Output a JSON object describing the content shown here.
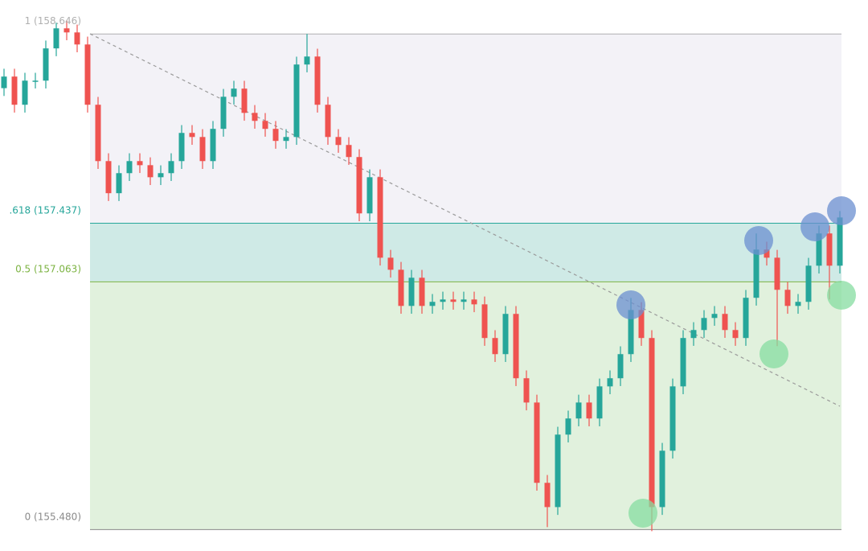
{
  "chart_data": {
    "type": "candlestick",
    "ylim": [
      155.4,
      158.75
    ],
    "up_color": "#26a69a",
    "down_color": "#ef5350",
    "fib_levels": [
      {
        "label": "1 (158.646)",
        "value": 158.646,
        "color": "#b0b0b0",
        "fill": "#f3f2f7"
      },
      {
        "label": ".618 (157.437)",
        "value": 157.437,
        "color": "#26a69a",
        "fill": "#cfeae6"
      },
      {
        "label": "0.5 (157.063)",
        "value": 157.063,
        "color": "#7cb342",
        "fill": "#e1f1dd"
      },
      {
        "label": "0 (155.480)",
        "value": 155.48,
        "color": "#8a8a8a",
        "fill": null
      }
    ],
    "open": [
      158.3,
      158.374,
      158.194,
      158.348,
      158.348,
      158.554,
      158.682,
      158.656,
      158.579,
      158.194,
      157.834,
      157.629,
      157.757,
      157.834,
      157.808,
      157.731,
      157.757,
      157.834,
      158.014,
      157.988,
      157.834,
      158.04,
      158.245,
      158.297,
      158.142,
      158.091,
      158.04,
      157.963,
      157.988,
      158.451,
      158.502,
      158.194,
      157.988,
      157.937,
      157.86,
      157.5,
      157.731,
      157.217,
      157.14,
      156.909,
      157.089,
      156.909,
      156.935,
      156.95,
      156.935,
      156.95,
      156.919,
      156.704,
      156.601,
      156.858,
      156.447,
      156.292,
      155.779,
      155.624,
      156.087,
      156.19,
      156.292,
      156.19,
      156.395,
      156.447,
      156.601,
      156.883,
      156.704,
      155.624,
      155.984,
      156.395,
      156.704,
      156.755,
      156.832,
      156.858,
      156.755,
      156.704,
      156.961,
      157.269,
      157.217,
      157.012,
      156.909,
      156.935,
      157.166,
      157.372,
      157.166
    ],
    "high": [
      158.424,
      158.424,
      158.398,
      158.398,
      158.604,
      158.718,
      158.732,
      158.706,
      158.629,
      158.244,
      157.884,
      157.807,
      157.884,
      157.884,
      157.858,
      157.807,
      157.884,
      158.064,
      158.064,
      158.038,
      158.09,
      158.295,
      158.347,
      158.347,
      158.192,
      158.141,
      158.09,
      158.038,
      158.501,
      158.646,
      158.552,
      158.244,
      158.038,
      157.987,
      157.91,
      157.781,
      157.781,
      157.267,
      157.19,
      157.139,
      157.139,
      156.985,
      157.0,
      157.0,
      157.0,
      157.0,
      156.969,
      156.754,
      156.908,
      156.908,
      156.497,
      156.342,
      155.829,
      156.137,
      156.24,
      156.342,
      156.342,
      156.445,
      156.497,
      156.651,
      156.96,
      156.933,
      156.754,
      156.034,
      156.445,
      156.754,
      156.805,
      156.882,
      156.908,
      156.908,
      156.805,
      157.011,
      157.372,
      157.319,
      157.267,
      157.062,
      156.985,
      157.216,
      157.422,
      157.422,
      157.515
    ],
    "low": [
      158.25,
      158.144,
      158.144,
      158.298,
      158.298,
      158.504,
      158.606,
      158.529,
      158.144,
      157.784,
      157.579,
      157.579,
      157.707,
      157.758,
      157.681,
      157.681,
      157.707,
      157.784,
      157.938,
      157.784,
      157.784,
      157.99,
      158.195,
      158.092,
      158.041,
      157.99,
      157.913,
      157.913,
      157.938,
      158.401,
      158.144,
      157.938,
      157.887,
      157.81,
      157.45,
      157.45,
      157.167,
      157.09,
      156.859,
      156.859,
      156.859,
      156.859,
      156.885,
      156.885,
      156.885,
      156.869,
      156.654,
      156.551,
      156.551,
      156.397,
      156.242,
      155.729,
      155.496,
      155.574,
      156.037,
      156.14,
      156.14,
      156.14,
      156.345,
      156.397,
      156.551,
      156.654,
      155.47,
      155.574,
      155.934,
      156.345,
      156.654,
      156.705,
      156.782,
      156.705,
      156.654,
      156.654,
      156.911,
      157.167,
      156.652,
      156.859,
      156.859,
      156.885,
      157.116,
      156.95,
      157.116
    ],
    "close": [
      158.374,
      158.194,
      158.348,
      158.348,
      158.554,
      158.682,
      158.656,
      158.579,
      158.194,
      157.834,
      157.629,
      157.757,
      157.834,
      157.808,
      157.731,
      157.757,
      157.834,
      158.014,
      157.988,
      157.834,
      158.04,
      158.245,
      158.297,
      158.142,
      158.091,
      158.04,
      157.963,
      157.988,
      158.451,
      158.502,
      158.194,
      157.988,
      157.937,
      157.86,
      157.5,
      157.731,
      157.217,
      157.14,
      156.909,
      157.089,
      156.909,
      156.935,
      156.95,
      156.935,
      156.95,
      156.919,
      156.704,
      156.601,
      156.858,
      156.447,
      156.292,
      155.779,
      155.624,
      156.087,
      156.19,
      156.292,
      156.19,
      156.395,
      156.447,
      156.601,
      156.883,
      156.704,
      155.624,
      155.984,
      156.395,
      156.704,
      156.755,
      156.832,
      156.858,
      156.755,
      156.704,
      156.961,
      157.269,
      157.217,
      157.012,
      156.909,
      156.935,
      157.166,
      157.372,
      157.166,
      157.474
    ]
  }
}
